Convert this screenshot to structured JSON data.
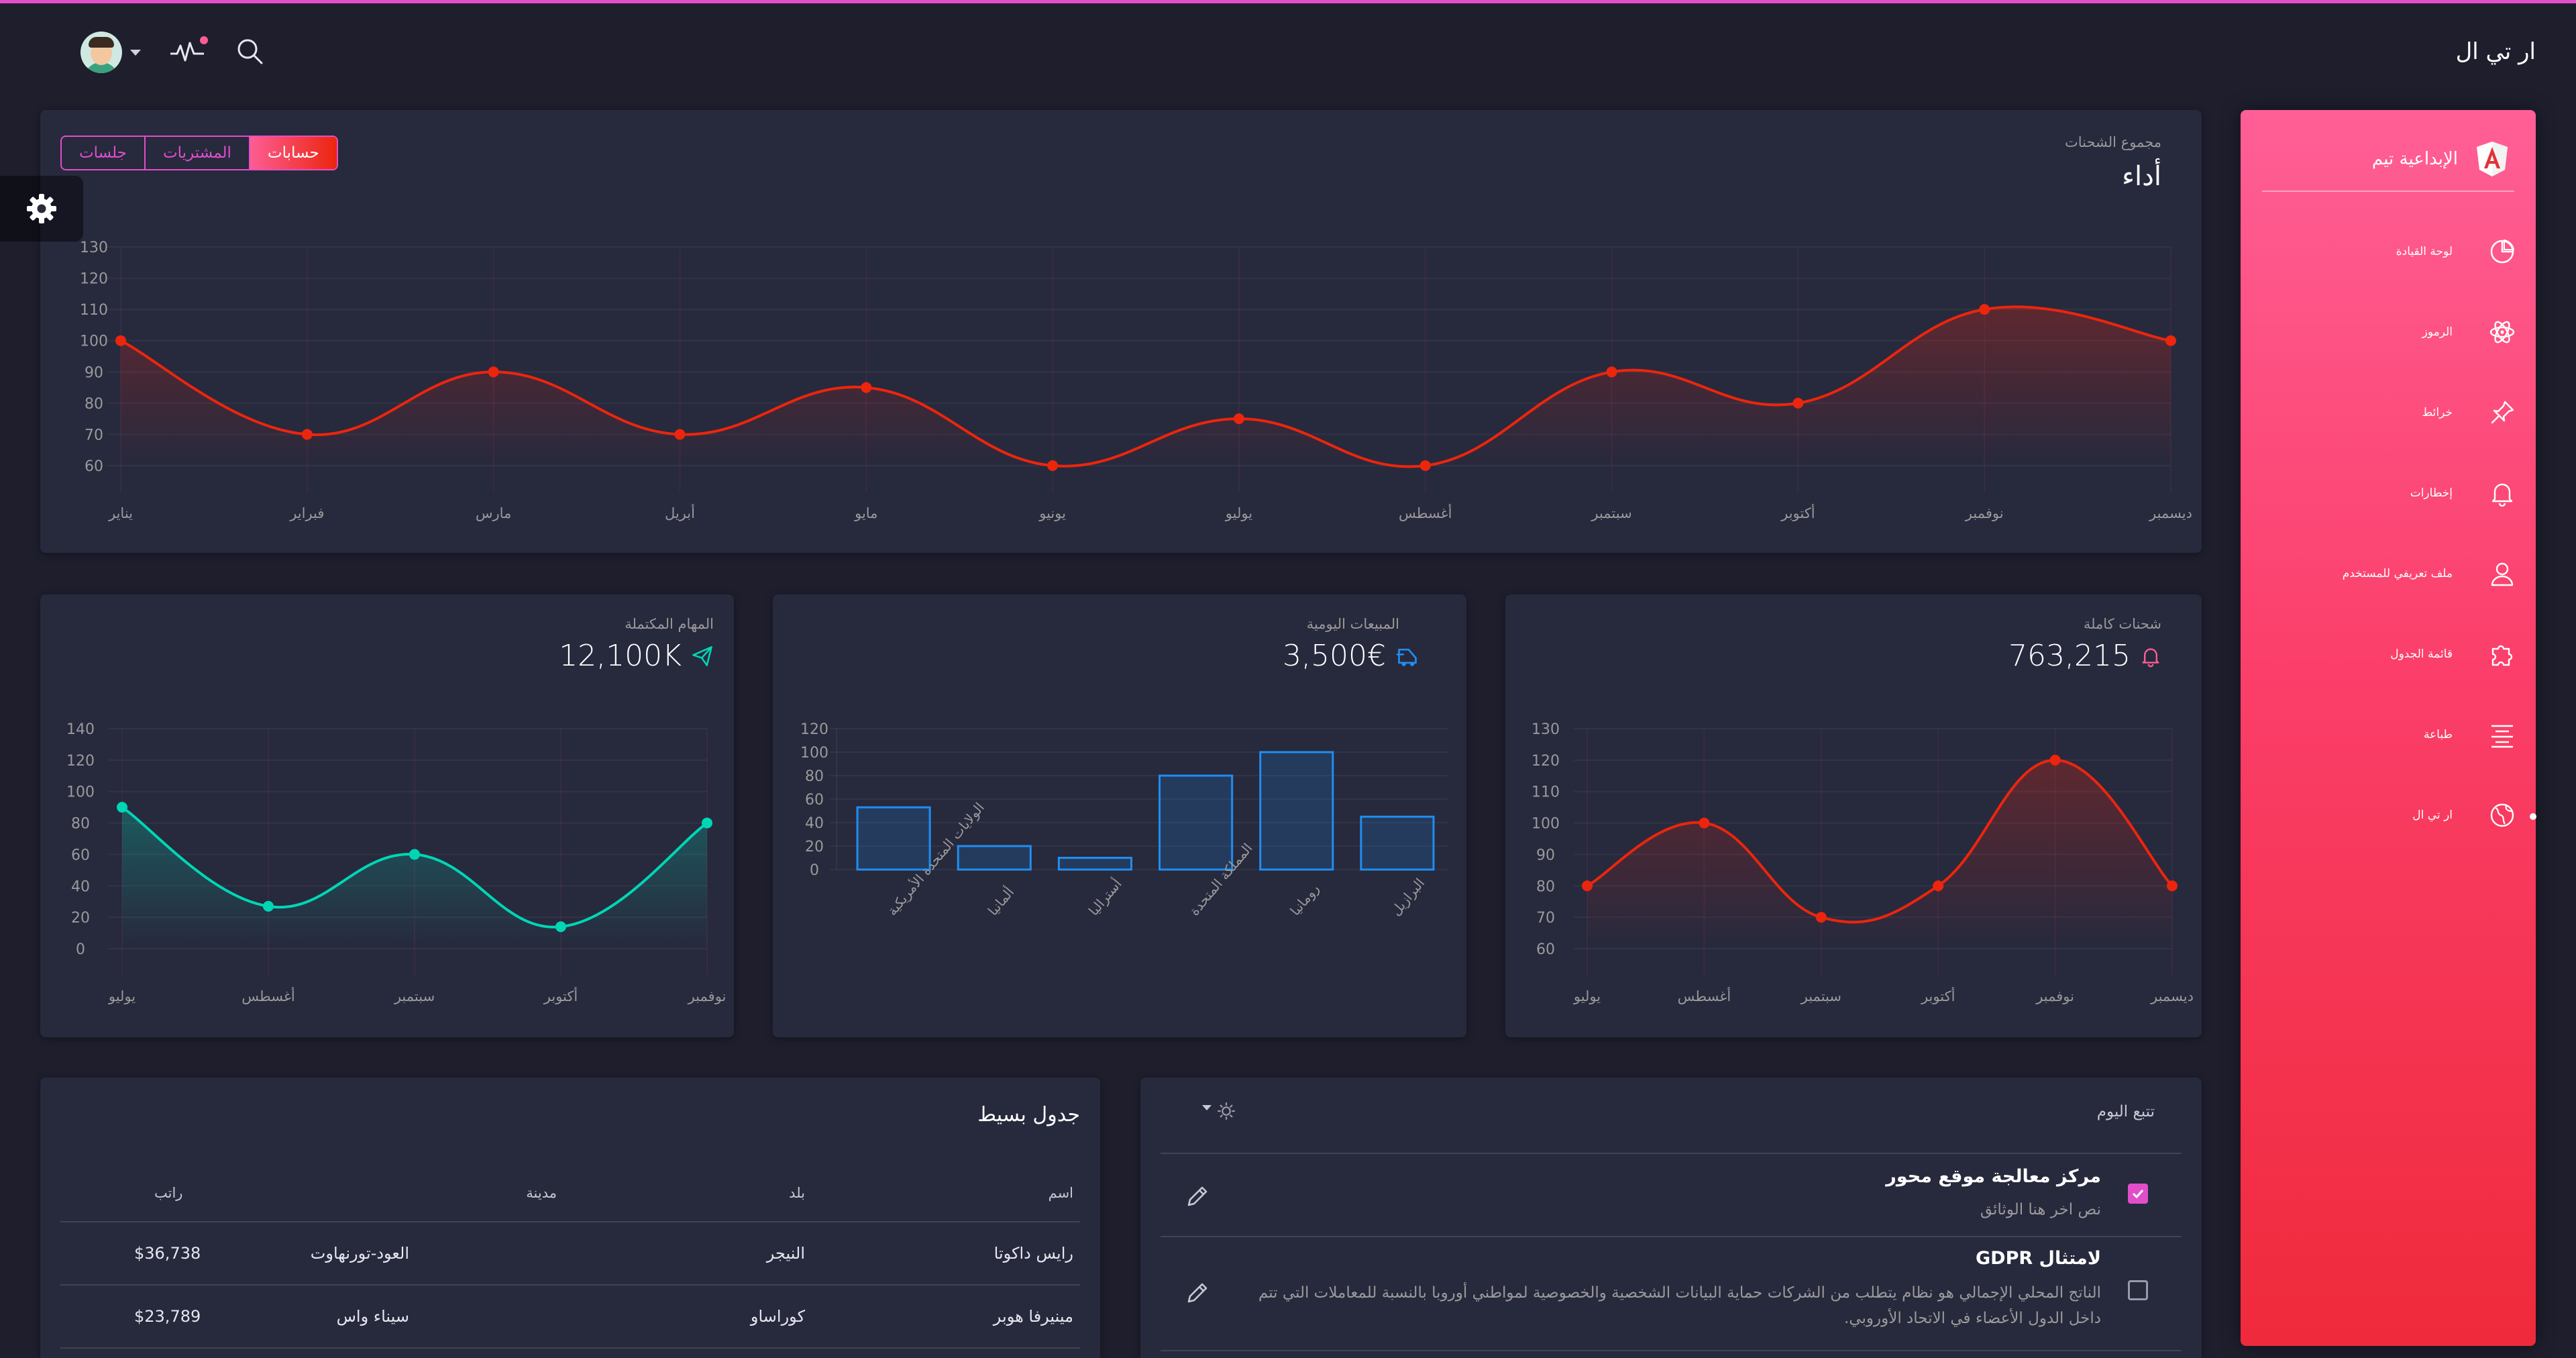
{
  "navbar": {
    "brand": "ار تي ال"
  },
  "colors": {
    "primary": "#e14eca",
    "danger": "#fd5d93",
    "red_line": "#ec250d",
    "teal_line": "#00d6b4",
    "blue_bar": "#1f8ef1",
    "card": "#27293d",
    "background": "#1e1e2d"
  },
  "icons": {
    "avatar": "user-avatar",
    "activity": "pulse-icon",
    "search": "search-icon",
    "settings": "gear-icon",
    "edit": "pencil-icon"
  },
  "sidebar": {
    "logo_text": "الإبداعية تيم",
    "items": [
      {
        "label": "لوحة القيادة",
        "icon": "pie-chart-icon"
      },
      {
        "label": "الرموز",
        "icon": "atom-icon"
      },
      {
        "label": "خرائط",
        "icon": "pin-icon"
      },
      {
        "label": "إخطارات",
        "icon": "bell-icon"
      },
      {
        "label": "ملف تعريفي للمستخدم",
        "icon": "user-icon"
      },
      {
        "label": "قائمة الجدول",
        "icon": "puzzle-icon"
      },
      {
        "label": "طباعة",
        "icon": "align-center-icon"
      },
      {
        "label": "ار تي ال",
        "icon": "globe-icon",
        "active": true
      }
    ]
  },
  "big_chart": {
    "category": "مجموع الشحنات",
    "title": "أداء",
    "tabs": [
      "حسابات",
      "المشتريات",
      "جلسات"
    ],
    "active_tab": 0
  },
  "card_shipments": {
    "category": "شحنات كاملة",
    "value": "763,215",
    "icon": "bell-icon"
  },
  "card_sales": {
    "category": "المبيعات اليومية",
    "value": "3,500€",
    "icon": "delivery-icon"
  },
  "card_tasks": {
    "category": "المهام المكتملة",
    "value": "12,100K",
    "icon": "send-icon"
  },
  "tasks": {
    "category": "تتبع اليوم",
    "items": [
      {
        "title": "مركز معالجة موقع محور",
        "text": "نص اخر هنا الوثائق",
        "checked": true
      },
      {
        "title": "لامتثال GDPR",
        "text": "الناتج المحلي الإجمالي هو نظام يتطلب من الشركات حماية البيانات الشخصية والخصوصية لمواطني أوروبا بالنسبة للمعاملات التي تتم داخل الدول الأعضاء في الاتحاد الأوروبي.",
        "checked": false
      }
    ]
  },
  "simple_table": {
    "title": "جدول بسيط",
    "headers": {
      "name": "اسم",
      "country": "بلد",
      "city": "مدينة",
      "salary": "راتب"
    },
    "rows": [
      {
        "name": "رايس داكوتا",
        "country": "النيجر",
        "city": "العود-تورنهاوت",
        "salary": "$36,738"
      },
      {
        "name": "مينيرفا هوبر",
        "country": "كوراساو",
        "city": "سيناء واس",
        "salary": "$23,789"
      }
    ]
  },
  "chart_data": [
    {
      "type": "line",
      "categories": [
        "يناير",
        "فبراير",
        "مارس",
        "أبريل",
        "مايو",
        "يونيو",
        "يوليو",
        "أغسطس",
        "سبتمبر",
        "أكتوبر",
        "نوفمبر",
        "ديسمبر"
      ],
      "values": [
        100,
        70,
        90,
        70,
        85,
        60,
        75,
        60,
        90,
        80,
        110,
        100
      ],
      "ylim": [
        60,
        130
      ],
      "yticks": [
        60,
        70,
        80,
        90,
        100,
        110,
        120,
        130
      ],
      "color": "#ec250d",
      "grid": true
    },
    {
      "type": "line",
      "categories": [
        "يوليو",
        "أغسطس",
        "سبتمبر",
        "أكتوبر",
        "نوفمبر",
        "ديسمبر"
      ],
      "values": [
        80,
        100,
        70,
        80,
        120,
        80
      ],
      "ylim": [
        60,
        130
      ],
      "yticks": [
        60,
        70,
        80,
        90,
        100,
        110,
        120,
        130
      ],
      "color": "#ec250d",
      "grid": true
    },
    {
      "type": "bar",
      "categories": [
        "الولايات المتحدة الأمريكية",
        "ألمانيا",
        "أستراليا",
        "المملكة المتحدة",
        "رومانيا",
        "البرازيل"
      ],
      "values": [
        53,
        20,
        10,
        80,
        100,
        45
      ],
      "ylim": [
        0,
        120
      ],
      "yticks": [
        0,
        20,
        40,
        60,
        80,
        100,
        120
      ],
      "color": "#1f8ef1",
      "grid": true
    },
    {
      "type": "line",
      "categories": [
        "يوليو",
        "أغسطس",
        "سبتمبر",
        "أكتوبر",
        "نوفمبر"
      ],
      "values": [
        90,
        27,
        60,
        14,
        80
      ],
      "ylim": [
        0,
        140
      ],
      "yticks": [
        0,
        20,
        40,
        60,
        80,
        100,
        120,
        140
      ],
      "color": "#00d6b4",
      "grid": true
    }
  ]
}
